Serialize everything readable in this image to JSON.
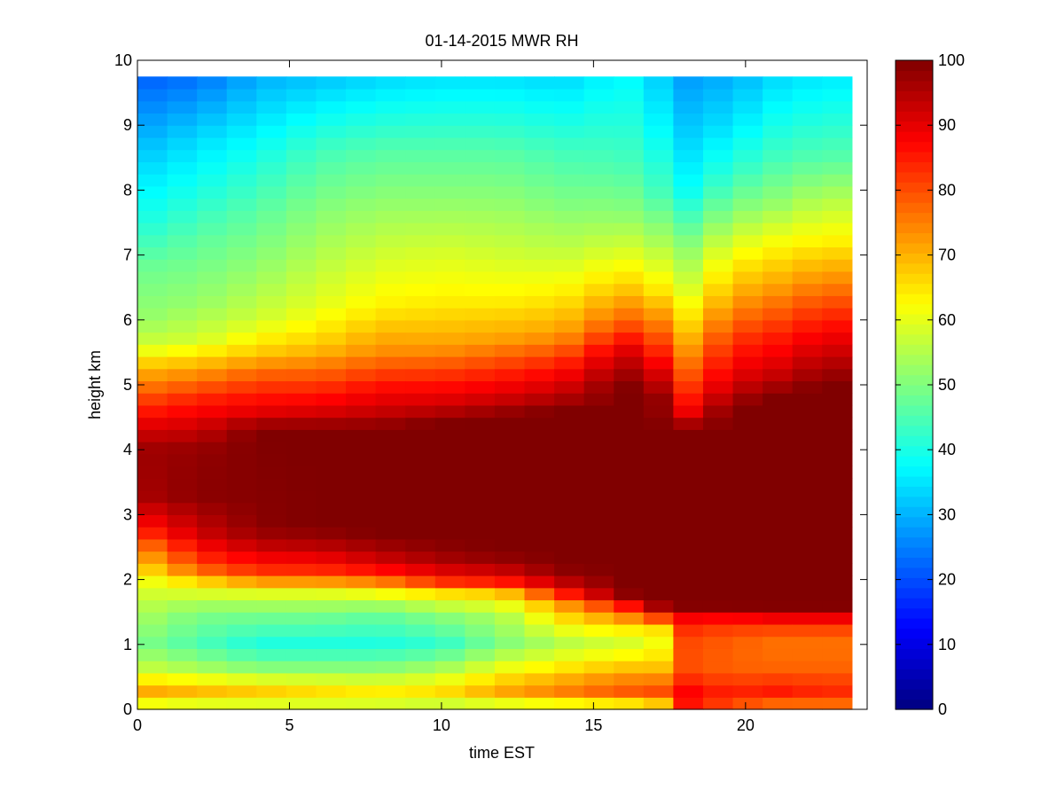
{
  "chart_data": {
    "type": "heatmap",
    "title": "01-14-2015 MWR RH",
    "xlabel": "time EST",
    "ylabel": "height km",
    "xlim": [
      0,
      24
    ],
    "ylim": [
      0,
      10
    ],
    "x_ticks": [
      0,
      5,
      10,
      15,
      20
    ],
    "y_ticks": [
      0,
      1,
      2,
      3,
      4,
      5,
      6,
      7,
      8,
      9,
      10
    ],
    "colorbar": {
      "colormap": "jet",
      "range": [
        0,
        100
      ],
      "ticks": [
        0,
        10,
        20,
        30,
        40,
        50,
        60,
        70,
        80,
        90,
        100
      ]
    },
    "data_extent": {
      "x_max": 23.5,
      "y_max": 9.75
    },
    "grid": false,
    "z_columns": [
      {
        "time": 0,
        "profile": [
          [
            0.05,
            60
          ],
          [
            0.3,
            72
          ],
          [
            0.6,
            58
          ],
          [
            1.0,
            50
          ],
          [
            1.5,
            55
          ],
          [
            2.0,
            60
          ],
          [
            2.5,
            74
          ],
          [
            2.8,
            85
          ],
          [
            3.3,
            96
          ],
          [
            4.0,
            97
          ],
          [
            4.3,
            92
          ],
          [
            4.8,
            80
          ],
          [
            5.3,
            68
          ],
          [
            5.6,
            58
          ],
          [
            6.0,
            52
          ],
          [
            6.8,
            48
          ],
          [
            7.5,
            40
          ],
          [
            8.2,
            35
          ],
          [
            9.0,
            28
          ],
          [
            9.7,
            22
          ]
        ]
      },
      {
        "time": 2,
        "profile": [
          [
            0.05,
            58
          ],
          [
            0.3,
            70
          ],
          [
            0.6,
            55
          ],
          [
            1.0,
            45
          ],
          [
            1.5,
            50
          ],
          [
            1.9,
            62
          ],
          [
            2.2,
            80
          ],
          [
            2.7,
            92
          ],
          [
            3.3,
            99
          ],
          [
            4.0,
            98
          ],
          [
            4.3,
            93
          ],
          [
            4.8,
            84
          ],
          [
            5.3,
            70
          ],
          [
            5.7,
            58
          ],
          [
            6.3,
            52
          ],
          [
            7.2,
            47
          ],
          [
            8.0,
            40
          ],
          [
            8.8,
            34
          ],
          [
            9.7,
            24
          ]
        ]
      },
      {
        "time": 4,
        "profile": [
          [
            0.05,
            58
          ],
          [
            0.3,
            68
          ],
          [
            0.6,
            52
          ],
          [
            1.0,
            40
          ],
          [
            1.5,
            50
          ],
          [
            1.8,
            60
          ],
          [
            2.1,
            82
          ],
          [
            2.5,
            93
          ],
          [
            2.8,
            99
          ],
          [
            4.3,
            100
          ],
          [
            4.6,
            90
          ],
          [
            5.1,
            80
          ],
          [
            5.5,
            68
          ],
          [
            6.0,
            58
          ],
          [
            6.8,
            52
          ],
          [
            7.6,
            47
          ],
          [
            8.5,
            40
          ],
          [
            9.7,
            30
          ]
        ]
      },
      {
        "time": 6,
        "profile": [
          [
            0.05,
            58
          ],
          [
            0.3,
            66
          ],
          [
            0.6,
            52
          ],
          [
            1.0,
            40
          ],
          [
            1.5,
            50
          ],
          [
            1.8,
            60
          ],
          [
            2.1,
            82
          ],
          [
            2.5,
            94
          ],
          [
            2.8,
            100
          ],
          [
            4.3,
            100
          ],
          [
            4.6,
            91
          ],
          [
            5.1,
            80
          ],
          [
            5.6,
            68
          ],
          [
            6.2,
            60
          ],
          [
            7.0,
            55
          ],
          [
            7.8,
            50
          ],
          [
            8.6,
            44
          ],
          [
            9.7,
            32
          ]
        ]
      },
      {
        "time": 8,
        "profile": [
          [
            0.05,
            58
          ],
          [
            0.3,
            64
          ],
          [
            0.6,
            52
          ],
          [
            1.0,
            40
          ],
          [
            1.5,
            48
          ],
          [
            1.8,
            62
          ],
          [
            2.1,
            85
          ],
          [
            2.4,
            95
          ],
          [
            2.7,
            100
          ],
          [
            4.3,
            100
          ],
          [
            4.6,
            93
          ],
          [
            5.0,
            86
          ],
          [
            5.5,
            74
          ],
          [
            6.2,
            64
          ],
          [
            7.0,
            58
          ],
          [
            7.8,
            52
          ],
          [
            8.6,
            46
          ],
          [
            9.7,
            34
          ]
        ]
      },
      {
        "time": 10,
        "profile": [
          [
            0.05,
            56
          ],
          [
            0.3,
            66
          ],
          [
            0.6,
            55
          ],
          [
            1.0,
            42
          ],
          [
            1.5,
            52
          ],
          [
            1.8,
            66
          ],
          [
            2.0,
            86
          ],
          [
            2.3,
            96
          ],
          [
            2.6,
            100
          ],
          [
            4.4,
            100
          ],
          [
            4.7,
            92
          ],
          [
            5.1,
            84
          ],
          [
            5.6,
            72
          ],
          [
            6.3,
            64
          ],
          [
            7.0,
            59
          ],
          [
            7.8,
            52
          ],
          [
            8.6,
            46
          ],
          [
            9.7,
            35
          ]
        ]
      },
      {
        "time": 12,
        "profile": [
          [
            0.05,
            58
          ],
          [
            0.3,
            72
          ],
          [
            0.6,
            62
          ],
          [
            1.0,
            50
          ],
          [
            1.5,
            55
          ],
          [
            1.8,
            68
          ],
          [
            2.0,
            88
          ],
          [
            2.3,
            98
          ],
          [
            2.5,
            100
          ],
          [
            4.5,
            100
          ],
          [
            4.8,
            92
          ],
          [
            5.2,
            84
          ],
          [
            5.7,
            72
          ],
          [
            6.3,
            64
          ],
          [
            7.0,
            58
          ],
          [
            7.8,
            52
          ],
          [
            8.6,
            46
          ],
          [
            9.7,
            35
          ]
        ]
      },
      {
        "time": 14,
        "profile": [
          [
            0.05,
            60
          ],
          [
            0.3,
            76
          ],
          [
            0.6,
            66
          ],
          [
            1.0,
            55
          ],
          [
            1.3,
            62
          ],
          [
            1.6,
            72
          ],
          [
            1.9,
            92
          ],
          [
            2.2,
            100
          ],
          [
            4.6,
            100
          ],
          [
            4.9,
            93
          ],
          [
            5.3,
            85
          ],
          [
            5.8,
            72
          ],
          [
            6.4,
            64
          ],
          [
            7.0,
            57
          ],
          [
            7.8,
            50
          ],
          [
            8.6,
            44
          ],
          [
            9.7,
            34
          ]
        ]
      },
      {
        "time": 16,
        "profile": [
          [
            0.05,
            62
          ],
          [
            0.3,
            80
          ],
          [
            0.6,
            70
          ],
          [
            1.0,
            58
          ],
          [
            1.3,
            66
          ],
          [
            1.6,
            85
          ],
          [
            1.8,
            100
          ],
          [
            5.0,
            100
          ],
          [
            5.5,
            92
          ],
          [
            6.0,
            78
          ],
          [
            6.5,
            68
          ],
          [
            7.0,
            60
          ],
          [
            7.6,
            52
          ],
          [
            8.4,
            45
          ],
          [
            9.7,
            38
          ]
        ]
      },
      {
        "time": 17,
        "profile": [
          [
            0.05,
            62
          ],
          [
            0.3,
            80
          ],
          [
            0.6,
            68
          ],
          [
            1.0,
            58
          ],
          [
            1.3,
            64
          ],
          [
            1.5,
            92
          ],
          [
            1.7,
            100
          ],
          [
            4.8,
            100
          ],
          [
            5.2,
            93
          ],
          [
            5.8,
            80
          ],
          [
            6.5,
            65
          ],
          [
            7.2,
            55
          ],
          [
            8.0,
            45
          ],
          [
            9.0,
            38
          ],
          [
            9.7,
            34
          ]
        ]
      },
      {
        "time": 18,
        "profile": [
          [
            0.05,
            86
          ],
          [
            0.3,
            88
          ],
          [
            0.6,
            80
          ],
          [
            1.0,
            80
          ],
          [
            1.3,
            84
          ],
          [
            1.5,
            92
          ],
          [
            1.6,
            100
          ],
          [
            4.3,
            100
          ],
          [
            4.6,
            88
          ],
          [
            5.2,
            78
          ],
          [
            5.8,
            68
          ],
          [
            6.5,
            58
          ],
          [
            7.2,
            50
          ],
          [
            8.0,
            38
          ],
          [
            8.8,
            33
          ],
          [
            9.7,
            28
          ]
        ]
      },
      {
        "time": 19.5,
        "profile": [
          [
            0.05,
            80
          ],
          [
            0.3,
            84
          ],
          [
            0.6,
            78
          ],
          [
            1.0,
            78
          ],
          [
            1.3,
            82
          ],
          [
            1.5,
            92
          ],
          [
            1.6,
            100
          ],
          [
            4.6,
            100
          ],
          [
            5.0,
            92
          ],
          [
            5.6,
            84
          ],
          [
            6.3,
            72
          ],
          [
            7.0,
            62
          ],
          [
            7.6,
            52
          ],
          [
            8.3,
            42
          ],
          [
            9.0,
            35
          ],
          [
            9.7,
            30
          ]
        ]
      },
      {
        "time": 21,
        "profile": [
          [
            0.05,
            76
          ],
          [
            0.3,
            86
          ],
          [
            0.6,
            78
          ],
          [
            1.0,
            76
          ],
          [
            1.3,
            82
          ],
          [
            1.5,
            95
          ],
          [
            1.6,
            100
          ],
          [
            4.8,
            100
          ],
          [
            5.2,
            92
          ],
          [
            5.8,
            84
          ],
          [
            6.5,
            72
          ],
          [
            7.2,
            62
          ],
          [
            7.8,
            52
          ],
          [
            8.5,
            44
          ],
          [
            9.2,
            38
          ],
          [
            9.7,
            34
          ]
        ]
      },
      {
        "time": 22.5,
        "profile": [
          [
            0.05,
            76
          ],
          [
            0.3,
            84
          ],
          [
            0.6,
            78
          ],
          [
            1.0,
            76
          ],
          [
            1.3,
            82
          ],
          [
            1.5,
            95
          ],
          [
            1.6,
            100
          ],
          [
            5.0,
            100
          ],
          [
            5.4,
            94
          ],
          [
            6.0,
            85
          ],
          [
            6.6,
            74
          ],
          [
            7.2,
            64
          ],
          [
            7.8,
            56
          ],
          [
            8.5,
            46
          ],
          [
            9.2,
            40
          ],
          [
            9.7,
            36
          ]
        ]
      }
    ]
  }
}
